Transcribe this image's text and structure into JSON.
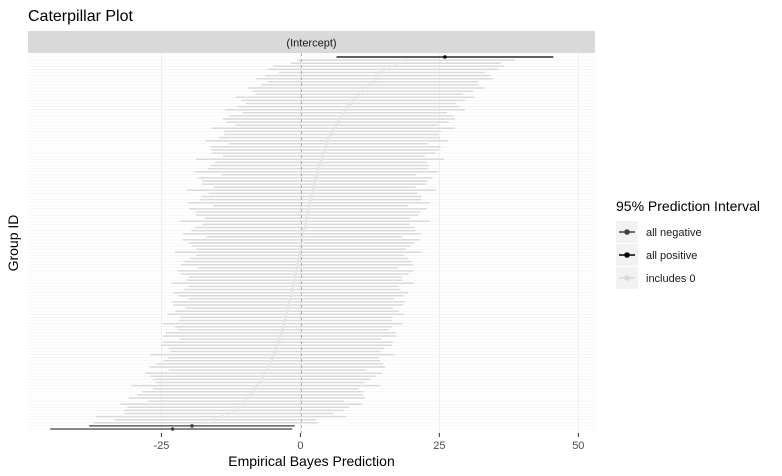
{
  "chart_data": {
    "type": "caterpillar",
    "title": "Caterpillar Plot",
    "facet_label": "(Intercept)",
    "xlabel": "Empirical Bayes Prediction",
    "ylabel": "Group ID",
    "xlim": [
      -49,
      53
    ],
    "x_ticks": [
      -25,
      0,
      25,
      50
    ],
    "x_tick_labels": [
      "-25",
      "0",
      "25",
      "50"
    ],
    "reference_line": 0,
    "n_groups": 121,
    "legend": {
      "title": "95% Prediction Interval",
      "entries": [
        {
          "label": "all negative",
          "color": "#404040"
        },
        {
          "label": "all positive",
          "color": "#000000"
        },
        {
          "label": "includes 0",
          "color": "#d9d9d9"
        }
      ]
    },
    "estimates_low_to_high": [
      -23,
      -19.5,
      -17,
      -15.5,
      -14,
      -13,
      -12,
      -11.2,
      -10.5,
      -10,
      -9.5,
      -9,
      -8.6,
      -8.2,
      -7.8,
      -7.4,
      -7,
      -6.7,
      -6.4,
      -6.1,
      -5.8,
      -5.5,
      -5.2,
      -5,
      -4.8,
      -4.6,
      -4.4,
      -4.2,
      -4,
      -3.8,
      -3.6,
      -3.4,
      -3.2,
      -3.1,
      -3,
      -2.8,
      -2.6,
      -2.5,
      -2.4,
      -2.2,
      -2.1,
      -2,
      -1.8,
      -1.7,
      -1.6,
      -1.5,
      -1.4,
      -1.2,
      -1.1,
      -1,
      -0.9,
      -0.8,
      -0.6,
      -0.5,
      -0.4,
      -0.3,
      -0.2,
      -0.1,
      0,
      0.1,
      0.2,
      0.3,
      0.4,
      0.5,
      0.6,
      0.8,
      0.9,
      1,
      1.1,
      1.2,
      1.4,
      1.5,
      1.6,
      1.7,
      1.8,
      2,
      2.1,
      2.2,
      2.4,
      2.5,
      2.6,
      2.8,
      3,
      3.1,
      3.2,
      3.4,
      3.6,
      3.8,
      4,
      4.2,
      4.4,
      4.6,
      4.8,
      5,
      5.2,
      5.5,
      5.8,
      6.1,
      6.4,
      6.7,
      7,
      7.4,
      7.8,
      8.2,
      8.6,
      9,
      9.5,
      10,
      10.5,
      11.2,
      12,
      12.5,
      13,
      13.5,
      14,
      14.5,
      15,
      16,
      17,
      19,
      26
    ],
    "interval_half_width": 20,
    "highlighted": [
      {
        "group": "lowest",
        "estimate": -23,
        "lower": -45,
        "upper": -1.5,
        "category": "all negative"
      },
      {
        "group": "second lowest",
        "estimate": -19.5,
        "lower": -38,
        "upper": -1,
        "category": "all negative"
      },
      {
        "group": "highest",
        "estimate": 26,
        "lower": 6.5,
        "upper": 45.5,
        "category": "all positive"
      }
    ]
  }
}
